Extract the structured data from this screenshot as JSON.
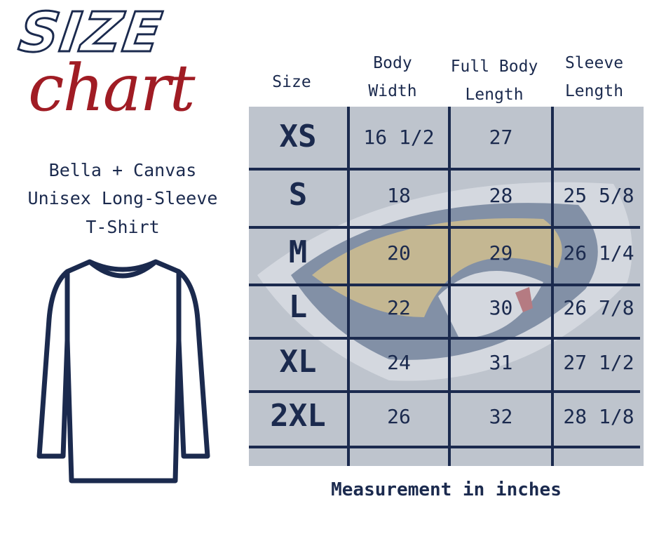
{
  "title": {
    "line1": "SIZE",
    "line2": "chart"
  },
  "product": {
    "line1": "Bella + Canvas",
    "line2": "Unisex Long-Sleeve",
    "line3": "T-Shirt"
  },
  "columns": [
    "Size",
    "Body Width",
    "Full Body Length",
    "Sleeve Length"
  ],
  "rows": [
    {
      "size": "XS",
      "body_width": "16 1/2",
      "full_body_length": "27",
      "sleeve_length": ""
    },
    {
      "size": "S",
      "body_width": "18",
      "full_body_length": "28",
      "sleeve_length": "25 5/8"
    },
    {
      "size": "M",
      "body_width": "20",
      "full_body_length": "29",
      "sleeve_length": "26 1/4"
    },
    {
      "size": "L",
      "body_width": "22",
      "full_body_length": "30",
      "sleeve_length": "26 7/8"
    },
    {
      "size": "XL",
      "body_width": "24",
      "full_body_length": "31",
      "sleeve_length": "27 1/2"
    },
    {
      "size": "2XL",
      "body_width": "26",
      "full_body_length": "32",
      "sleeve_length": "28 1/8"
    }
  ],
  "footer": "Measurement in inches",
  "colors": {
    "navy": "#1b2a4e",
    "red": "#a01c24",
    "table_bg": "#bec4cd"
  },
  "icons": {
    "shirt": "long-sleeve-tshirt-icon",
    "watermark": "jaguar-logo-watermark"
  }
}
